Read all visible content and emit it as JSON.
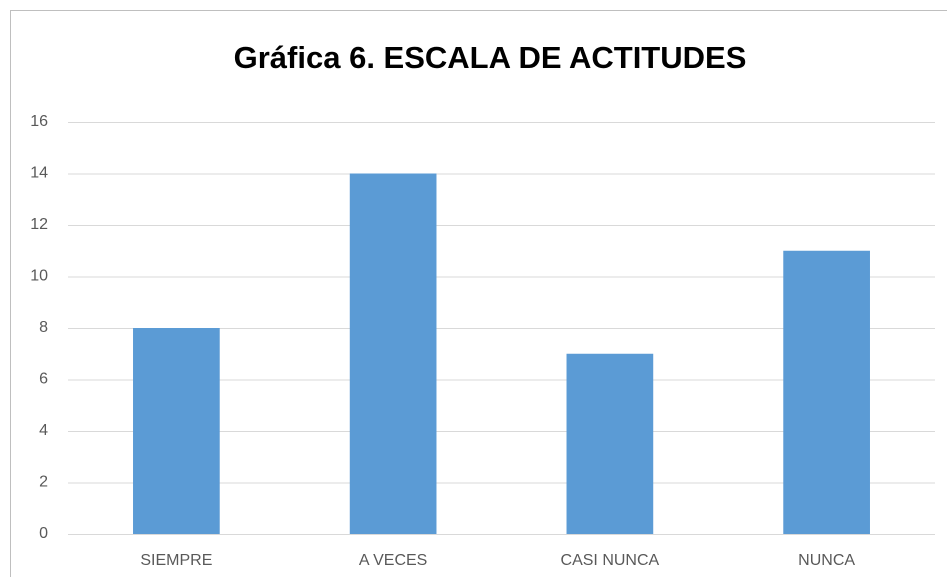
{
  "chart_data": {
    "type": "bar",
    "title": "Gráfica 6. ESCALA DE ACTITUDES",
    "categories": [
      "SIEMPRE",
      "A VECES",
      "CASI NUNCA",
      "NUNCA"
    ],
    "values": [
      8,
      14,
      7,
      11
    ],
    "color": "#5b9bd5",
    "ylim": [
      0,
      16
    ],
    "yticks": [
      0,
      2,
      4,
      6,
      8,
      10,
      12,
      14,
      16
    ],
    "grid": true
  }
}
